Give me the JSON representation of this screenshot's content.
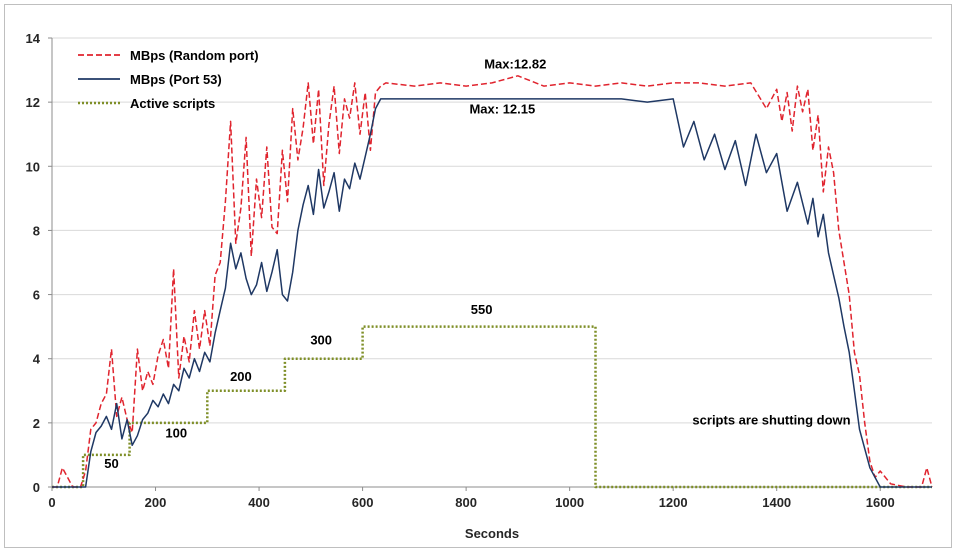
{
  "chart_data": {
    "type": "line",
    "xlabel": "Seconds",
    "ylabel": "",
    "xlim": [
      0,
      1700
    ],
    "ylim": [
      0,
      14
    ],
    "x_ticks": [
      0,
      200,
      400,
      600,
      800,
      1000,
      1200,
      1400,
      1600
    ],
    "y_ticks": [
      0,
      2,
      4,
      6,
      8,
      10,
      12,
      14
    ],
    "grid": "horizontal",
    "legend_position": "top-left",
    "series": [
      {
        "name": "MBps (Random port)",
        "color": "#e0242e",
        "style": "dashed",
        "x": [
          0,
          10,
          20,
          40,
          55,
          65,
          75,
          85,
          95,
          105,
          115,
          125,
          135,
          145,
          155,
          165,
          175,
          185,
          195,
          205,
          215,
          225,
          235,
          245,
          255,
          265,
          275,
          285,
          295,
          305,
          315,
          325,
          335,
          345,
          355,
          365,
          375,
          385,
          395,
          405,
          415,
          425,
          435,
          445,
          455,
          465,
          475,
          485,
          495,
          505,
          515,
          525,
          535,
          545,
          555,
          565,
          575,
          585,
          595,
          605,
          615,
          625,
          635,
          645,
          700,
          750,
          800,
          850,
          900,
          950,
          1000,
          1050,
          1100,
          1150,
          1200,
          1250,
          1300,
          1350,
          1380,
          1400,
          1410,
          1420,
          1430,
          1440,
          1450,
          1460,
          1470,
          1480,
          1490,
          1500,
          1510,
          1520,
          1530,
          1540,
          1550,
          1560,
          1570,
          1580,
          1590,
          1600,
          1620,
          1650,
          1680,
          1690,
          1700
        ],
        "values": [
          0,
          0,
          0.6,
          0,
          0,
          0.5,
          1.8,
          2.0,
          2.6,
          2.9,
          4.3,
          2.2,
          2.8,
          2.1,
          1.7,
          4.3,
          3.0,
          3.6,
          3.2,
          4.1,
          4.6,
          3.7,
          6.8,
          3.4,
          4.7,
          3.9,
          5.5,
          4.3,
          5.5,
          4.4,
          6.6,
          7.0,
          8.9,
          11.4,
          7.6,
          8.7,
          10.9,
          7.2,
          9.6,
          8.4,
          10.6,
          8.1,
          7.9,
          10.5,
          8.9,
          11.8,
          10.2,
          11.2,
          12.6,
          10.7,
          12.4,
          9.4,
          11.3,
          12.5,
          10.4,
          12.1,
          11.5,
          12.6,
          11.0,
          12.3,
          10.5,
          12.3,
          12.5,
          12.6,
          12.5,
          12.6,
          12.5,
          12.6,
          12.82,
          12.5,
          12.6,
          12.5,
          12.6,
          12.5,
          12.6,
          12.6,
          12.5,
          12.6,
          11.8,
          12.4,
          11.4,
          12.3,
          11.1,
          12.5,
          11.7,
          12.4,
          10.5,
          11.6,
          9.2,
          10.6,
          9.8,
          8.0,
          7.0,
          6.0,
          4.2,
          3.5,
          2.0,
          0.8,
          0.3,
          0.5,
          0.1,
          0,
          0,
          0.6,
          0
        ]
      },
      {
        "name": "MBps (Port 53)",
        "color": "#1f3864",
        "style": "solid",
        "x": [
          0,
          10,
          20,
          40,
          55,
          65,
          75,
          85,
          95,
          105,
          115,
          125,
          135,
          145,
          155,
          165,
          175,
          185,
          195,
          205,
          215,
          225,
          235,
          245,
          255,
          265,
          275,
          285,
          295,
          305,
          315,
          325,
          335,
          345,
          355,
          365,
          375,
          385,
          395,
          405,
          415,
          425,
          435,
          445,
          455,
          465,
          475,
          485,
          495,
          505,
          515,
          525,
          535,
          545,
          555,
          565,
          575,
          585,
          595,
          605,
          615,
          625,
          635,
          645,
          700,
          750,
          800,
          850,
          900,
          950,
          1000,
          1050,
          1100,
          1150,
          1200,
          1220,
          1240,
          1260,
          1280,
          1300,
          1320,
          1340,
          1360,
          1380,
          1400,
          1420,
          1440,
          1460,
          1470,
          1480,
          1490,
          1500,
          1510,
          1520,
          1530,
          1540,
          1550,
          1560,
          1580,
          1600,
          1650,
          1700
        ],
        "values": [
          0,
          0,
          0,
          0,
          0,
          0,
          1.1,
          1.7,
          1.9,
          2.2,
          1.8,
          2.6,
          1.5,
          2.1,
          1.3,
          1.6,
          2.1,
          2.3,
          2.7,
          2.5,
          2.9,
          2.6,
          3.2,
          3.0,
          3.7,
          3.4,
          4.0,
          3.6,
          4.2,
          3.9,
          4.8,
          5.5,
          6.2,
          7.6,
          6.8,
          7.3,
          6.5,
          6.0,
          6.3,
          7.0,
          6.1,
          6.7,
          7.4,
          6.0,
          5.8,
          6.7,
          8.0,
          8.8,
          9.4,
          8.5,
          9.9,
          8.7,
          9.2,
          9.8,
          8.6,
          9.6,
          9.3,
          10.1,
          9.6,
          10.3,
          11.0,
          11.8,
          12.1,
          12.1,
          12.1,
          12.1,
          12.1,
          12.1,
          12.1,
          12.1,
          12.1,
          12.1,
          12.1,
          12.0,
          12.1,
          10.6,
          11.4,
          10.2,
          11.0,
          9.9,
          10.8,
          9.4,
          11.0,
          9.8,
          10.4,
          8.6,
          9.5,
          8.2,
          9.0,
          7.8,
          8.5,
          7.3,
          6.6,
          5.9,
          5.0,
          4.2,
          3.0,
          1.8,
          0.6,
          0,
          0,
          0
        ]
      },
      {
        "name": "Active scripts",
        "color": "#7f8f28",
        "style": "dotted",
        "x": [
          0,
          60,
          60,
          150,
          150,
          300,
          300,
          450,
          450,
          600,
          600,
          1050,
          1050,
          1700
        ],
        "values": [
          0,
          0,
          1,
          1,
          2,
          2,
          3,
          3,
          4,
          4,
          5,
          5,
          0,
          0
        ]
      }
    ],
    "annotations": [
      {
        "text": "Max:12.82",
        "x": 895,
        "y": 13.05
      },
      {
        "text": "Max: 12.15",
        "x": 870,
        "y": 11.65
      },
      {
        "text": "50",
        "x": 115,
        "y": 0.6
      },
      {
        "text": "100",
        "x": 240,
        "y": 1.55
      },
      {
        "text": "200",
        "x": 365,
        "y": 3.3
      },
      {
        "text": "300",
        "x": 520,
        "y": 4.45
      },
      {
        "text": "550",
        "x": 830,
        "y": 5.4
      },
      {
        "text": "scripts are shutting down",
        "x": 1390,
        "y": 1.95
      }
    ]
  }
}
